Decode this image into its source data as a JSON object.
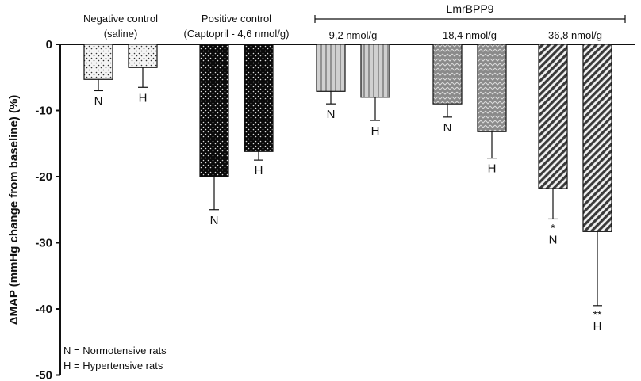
{
  "chart_data": {
    "type": "bar",
    "ylabel": "ΔMAP (mmHg change from baseline) (%)",
    "ylim": [
      -50,
      0
    ],
    "yticks": [
      0,
      -10,
      -20,
      -30,
      -40,
      -50
    ],
    "groups": [
      {
        "label_line1": "Negative control",
        "label_line2": "(saline)"
      },
      {
        "label_line1": "Positive control",
        "label_line2": "(Captopril - 4,6 nmol/g)"
      },
      {
        "label_line1": "9,2 nmol/g",
        "label_line2": ""
      },
      {
        "label_line1": "18,4 nmol/g",
        "label_line2": ""
      },
      {
        "label_line1": "36,8 nmol/g",
        "label_line2": ""
      }
    ],
    "bracket_label": "LmrBPP9",
    "bars": [
      {
        "group": 0,
        "label": "N",
        "value": -5.3,
        "error": 1.7,
        "sig": "",
        "pattern": "dots-sparse"
      },
      {
        "group": 0,
        "label": "H",
        "value": -3.5,
        "error": 3.0,
        "sig": "",
        "pattern": "dots-sparse"
      },
      {
        "group": 1,
        "label": "N",
        "value": -20.0,
        "error": 5.0,
        "sig": "",
        "pattern": "dots-dark"
      },
      {
        "group": 1,
        "label": "H",
        "value": -16.2,
        "error": 1.3,
        "sig": "",
        "pattern": "dots-dark"
      },
      {
        "group": 2,
        "label": "N",
        "value": -7.1,
        "error": 1.9,
        "sig": "",
        "pattern": "vlines"
      },
      {
        "group": 2,
        "label": "H",
        "value": -8.0,
        "error": 3.5,
        "sig": "",
        "pattern": "vlines"
      },
      {
        "group": 3,
        "label": "N",
        "value": -9.0,
        "error": 2.0,
        "sig": "",
        "pattern": "checks"
      },
      {
        "group": 3,
        "label": "H",
        "value": -13.2,
        "error": 4.0,
        "sig": "",
        "pattern": "checks"
      },
      {
        "group": 4,
        "label": "N",
        "value": -21.8,
        "error": 4.6,
        "sig": "*",
        "pattern": "diag"
      },
      {
        "group": 4,
        "label": "H",
        "value": -28.3,
        "error": 11.2,
        "sig": "**",
        "pattern": "diag"
      }
    ],
    "legend": [
      "N = Normotensive rats",
      "H = Hypertensive rats"
    ]
  }
}
